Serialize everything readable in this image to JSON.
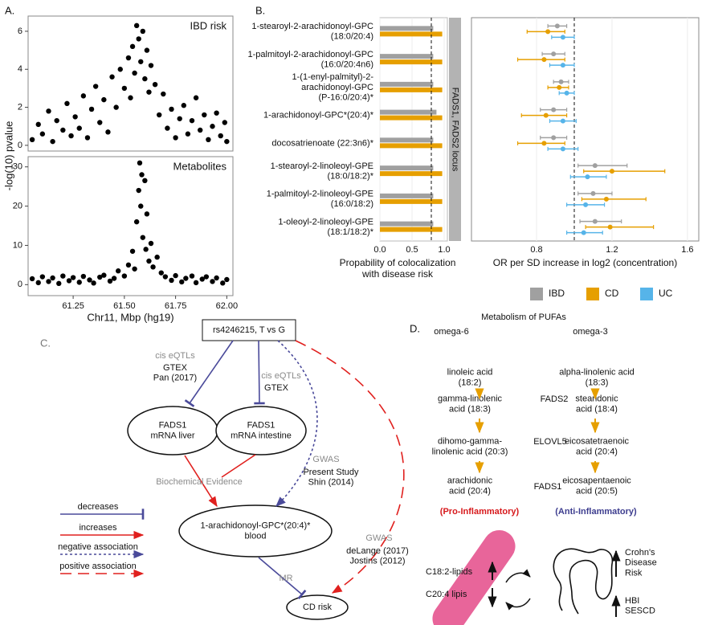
{
  "panel_labels": [
    "A.",
    "B.",
    "C.",
    "D."
  ],
  "chart_data": [
    {
      "type": "scatter",
      "annotation": "IBD risk",
      "ylabel": "-log(10) pvalue",
      "color": "#000000",
      "x": [
        61.05,
        61.08,
        61.1,
        61.13,
        61.15,
        61.17,
        61.2,
        61.22,
        61.24,
        61.26,
        61.28,
        61.3,
        61.32,
        61.34,
        61.36,
        61.38,
        61.4,
        61.42,
        61.44,
        61.46,
        61.48,
        61.5,
        61.52,
        61.53,
        61.54,
        61.55,
        61.56,
        61.57,
        61.58,
        61.59,
        61.6,
        61.61,
        61.62,
        61.63,
        61.65,
        61.67,
        61.69,
        61.71,
        61.73,
        61.75,
        61.77,
        61.79,
        61.81,
        61.83,
        61.85,
        61.87,
        61.89,
        61.91,
        61.93,
        61.95,
        61.97,
        61.99,
        62.0
      ],
      "values": [
        0.3,
        1.1,
        0.6,
        1.8,
        0.2,
        1.3,
        0.8,
        2.2,
        0.5,
        1.5,
        0.9,
        2.6,
        0.4,
        1.9,
        3.1,
        1.2,
        2.4,
        0.7,
        3.6,
        2.0,
        4.0,
        3.0,
        4.6,
        2.5,
        5.2,
        3.8,
        6.3,
        5.6,
        4.4,
        6.0,
        3.5,
        5.0,
        2.8,
        4.2,
        3.2,
        1.6,
        2.7,
        0.9,
        1.9,
        0.4,
        1.4,
        2.1,
        0.6,
        1.3,
        2.5,
        0.8,
        1.6,
        0.3,
        1.0,
        1.7,
        0.5,
        1.2,
        0.2
      ],
      "xlim": [
        61.03,
        62.03
      ],
      "ylim": [
        -0.3,
        6.8
      ],
      "yticks": [
        0,
        2,
        4,
        6
      ]
    },
    {
      "type": "scatter",
      "annotation": "Metabolites",
      "xlabel": "Chr11, Mbp (hg19)",
      "color": "#000000",
      "x": [
        61.05,
        61.08,
        61.1,
        61.13,
        61.15,
        61.18,
        61.2,
        61.23,
        61.25,
        61.28,
        61.3,
        61.33,
        61.35,
        61.38,
        61.4,
        61.43,
        61.45,
        61.47,
        61.5,
        61.52,
        61.54,
        61.55,
        61.56,
        61.57,
        61.575,
        61.58,
        61.585,
        61.59,
        61.6,
        61.605,
        61.61,
        61.62,
        61.63,
        61.64,
        61.66,
        61.68,
        61.7,
        61.73,
        61.75,
        61.78,
        61.8,
        61.83,
        61.85,
        61.88,
        61.9,
        61.93,
        61.95,
        61.98,
        62.0
      ],
      "values": [
        1.5,
        0.5,
        2.0,
        0.8,
        1.7,
        0.3,
        2.2,
        1.0,
        1.8,
        0.6,
        2.1,
        1.2,
        0.4,
        1.9,
        2.4,
        0.9,
        1.6,
        3.5,
        2.2,
        5.0,
        8.5,
        4.0,
        16.0,
        24.0,
        31.0,
        20.0,
        28.0,
        12.0,
        26.5,
        9.0,
        18.0,
        6.0,
        10.5,
        4.5,
        7.0,
        3.0,
        2.0,
        1.1,
        2.3,
        0.7,
        1.6,
        2.2,
        0.5,
        1.4,
        2.0,
        0.8,
        1.7,
        0.4,
        1.3
      ],
      "xlim": [
        61.03,
        62.03
      ],
      "ylim": [
        -2.8,
        32.6
      ],
      "yticks": [
        0,
        10,
        20,
        30
      ],
      "xticks": [
        61.25,
        {
          "value": 61.5,
          "label": "61.50"
        },
        61.75,
        {
          "value": 62,
          "label": "62.00"
        }
      ]
    },
    {
      "type": "bar",
      "horizontal": true,
      "categories": [
        "1-stearoyl-2-arachidonoyl-GPC\n(18:0/20:4)",
        "1-palmitoyl-2-arachidonoyl-GPC\n(16:0/20:4n6)",
        "1-(1-enyl-palmityl)-2-\narachidonoyl-GPC\n(P-16:0/20:4)*",
        "1-arachidonoyl-GPC*(20:4)*",
        "docosatrienoate (22:3n6)*",
        "1-stearoyl-2-linoleoyl-GPE\n(18:0/18:2)*",
        "1-palmitoyl-2-linoleoyl-GPE\n(16:0/18:2)",
        "1-oleoyl-2-linoleoyl-GPE\n(18:1/18:2)*"
      ],
      "series": [
        {
          "color": "#a0a0a0",
          "values": [
            0.83,
            0.83,
            0.83,
            0.88,
            0.83,
            0.83,
            0.83,
            0.83
          ]
        },
        {
          "color": "#e69f00",
          "values": [
            0.97,
            0.97,
            0.97,
            0.97,
            0.97,
            0.97,
            0.97,
            0.97
          ]
        }
      ],
      "xlim": [
        0,
        1.05
      ],
      "xticks": [
        {
          "value": 0,
          "label": "0.0"
        },
        {
          "value": 0.5,
          "label": "0.5"
        },
        {
          "value": 1,
          "label": "1.0"
        }
      ],
      "reference_line": 0.8,
      "facet_label": "FADS1, FADS2 locus",
      "xlabel": "Propability of colocalization\nwith disease risk"
    },
    {
      "type": "forest",
      "series": [
        {
          "name": "IBD",
          "color": "#a0a0a0",
          "values": [
            0.91,
            0.89,
            0.93,
            0.89,
            0.89,
            1.11,
            1.1,
            1.11
          ],
          "lower": [
            0.86,
            0.83,
            0.89,
            0.82,
            0.82,
            1.02,
            1.02,
            1.03
          ],
          "upper": [
            0.96,
            0.95,
            0.97,
            0.96,
            0.96,
            1.28,
            1.2,
            1.25
          ]
        },
        {
          "name": "CD",
          "color": "#e69f00",
          "values": [
            0.86,
            0.84,
            0.92,
            0.85,
            0.84,
            1.2,
            1.17,
            1.19
          ],
          "lower": [
            0.75,
            0.7,
            0.86,
            0.72,
            0.7,
            1.05,
            1.04,
            1.06
          ],
          "upper": [
            0.95,
            0.95,
            0.97,
            0.96,
            0.95,
            1.48,
            1.38,
            1.42
          ]
        },
        {
          "name": "UC",
          "color": "#56b4e9",
          "values": [
            0.94,
            0.94,
            0.96,
            0.94,
            0.94,
            1.07,
            1.06,
            1.05
          ],
          "lower": [
            0.88,
            0.87,
            0.92,
            0.87,
            0.86,
            0.98,
            0.96,
            0.96
          ],
          "upper": [
            1.0,
            1.0,
            1.0,
            1.01,
            1.02,
            1.17,
            1.16,
            1.15
          ]
        }
      ],
      "xlim": [
        0.455,
        1.66
      ],
      "xticks": [
        0.8,
        1.2,
        1.6
      ],
      "reference_line": 1,
      "grid": true,
      "xlabel": "OR per SD increase in log2 (concentration)"
    }
  ],
  "diagram_c": {
    "nodes": [
      "rs4246215, T vs G",
      "FADS1\nmRNA liver",
      "FADS1\nmRNA intestine",
      "1-arachidonoyl-GPC*(20:4)*\nblood",
      "CD risk"
    ],
    "edges": [
      {
        "evidence": "cis eQTLs",
        "source": "GTEX\nPan (2017)"
      },
      {
        "evidence": "cis eQTLs",
        "source": "GTEX"
      },
      {
        "evidence": "Biochemical Evidence"
      },
      {
        "evidence": "GWAS",
        "source": "Present Study\nShin (2014)"
      },
      {
        "evidence": "GWAS",
        "source": "deLange (2017)\nJostins (2012)"
      },
      {
        "evidence": "MR"
      }
    ],
    "legend": [
      "decreases",
      "increases",
      "negative association",
      "positive association"
    ]
  },
  "diagram_d": {
    "title": "Metabolism of PUFAs",
    "omega6": {
      "label": "omega-6",
      "steps": [
        "linoleic acid\n(18:2)",
        "gamma-linolenic\nacid (18:3)",
        "dihomo-gamma-\nlinolenic acid (20:3)",
        "arachidonic\nacid (20:4)"
      ]
    },
    "omega3": {
      "label": "omega-3",
      "steps": [
        "alpha-linolenic acid\n(18:3)",
        "stearidonic\nacid (18:4)",
        "eicosatetraenoic\nacid (20:4)",
        "eicosapentaenoic\nacid (20:5)"
      ]
    },
    "enzymes": [
      "FADS2",
      "ELOVL5",
      "FADS1"
    ],
    "pro": "(Pro-Inflammatory)",
    "anti": "(Anti-Inflammatory)",
    "lipids": [
      "C18:2-lipids",
      "C20:4 lipis"
    ],
    "outcomes": [
      "Crohn's\nDisease\nRisk",
      "HBI\nSESCD"
    ]
  }
}
